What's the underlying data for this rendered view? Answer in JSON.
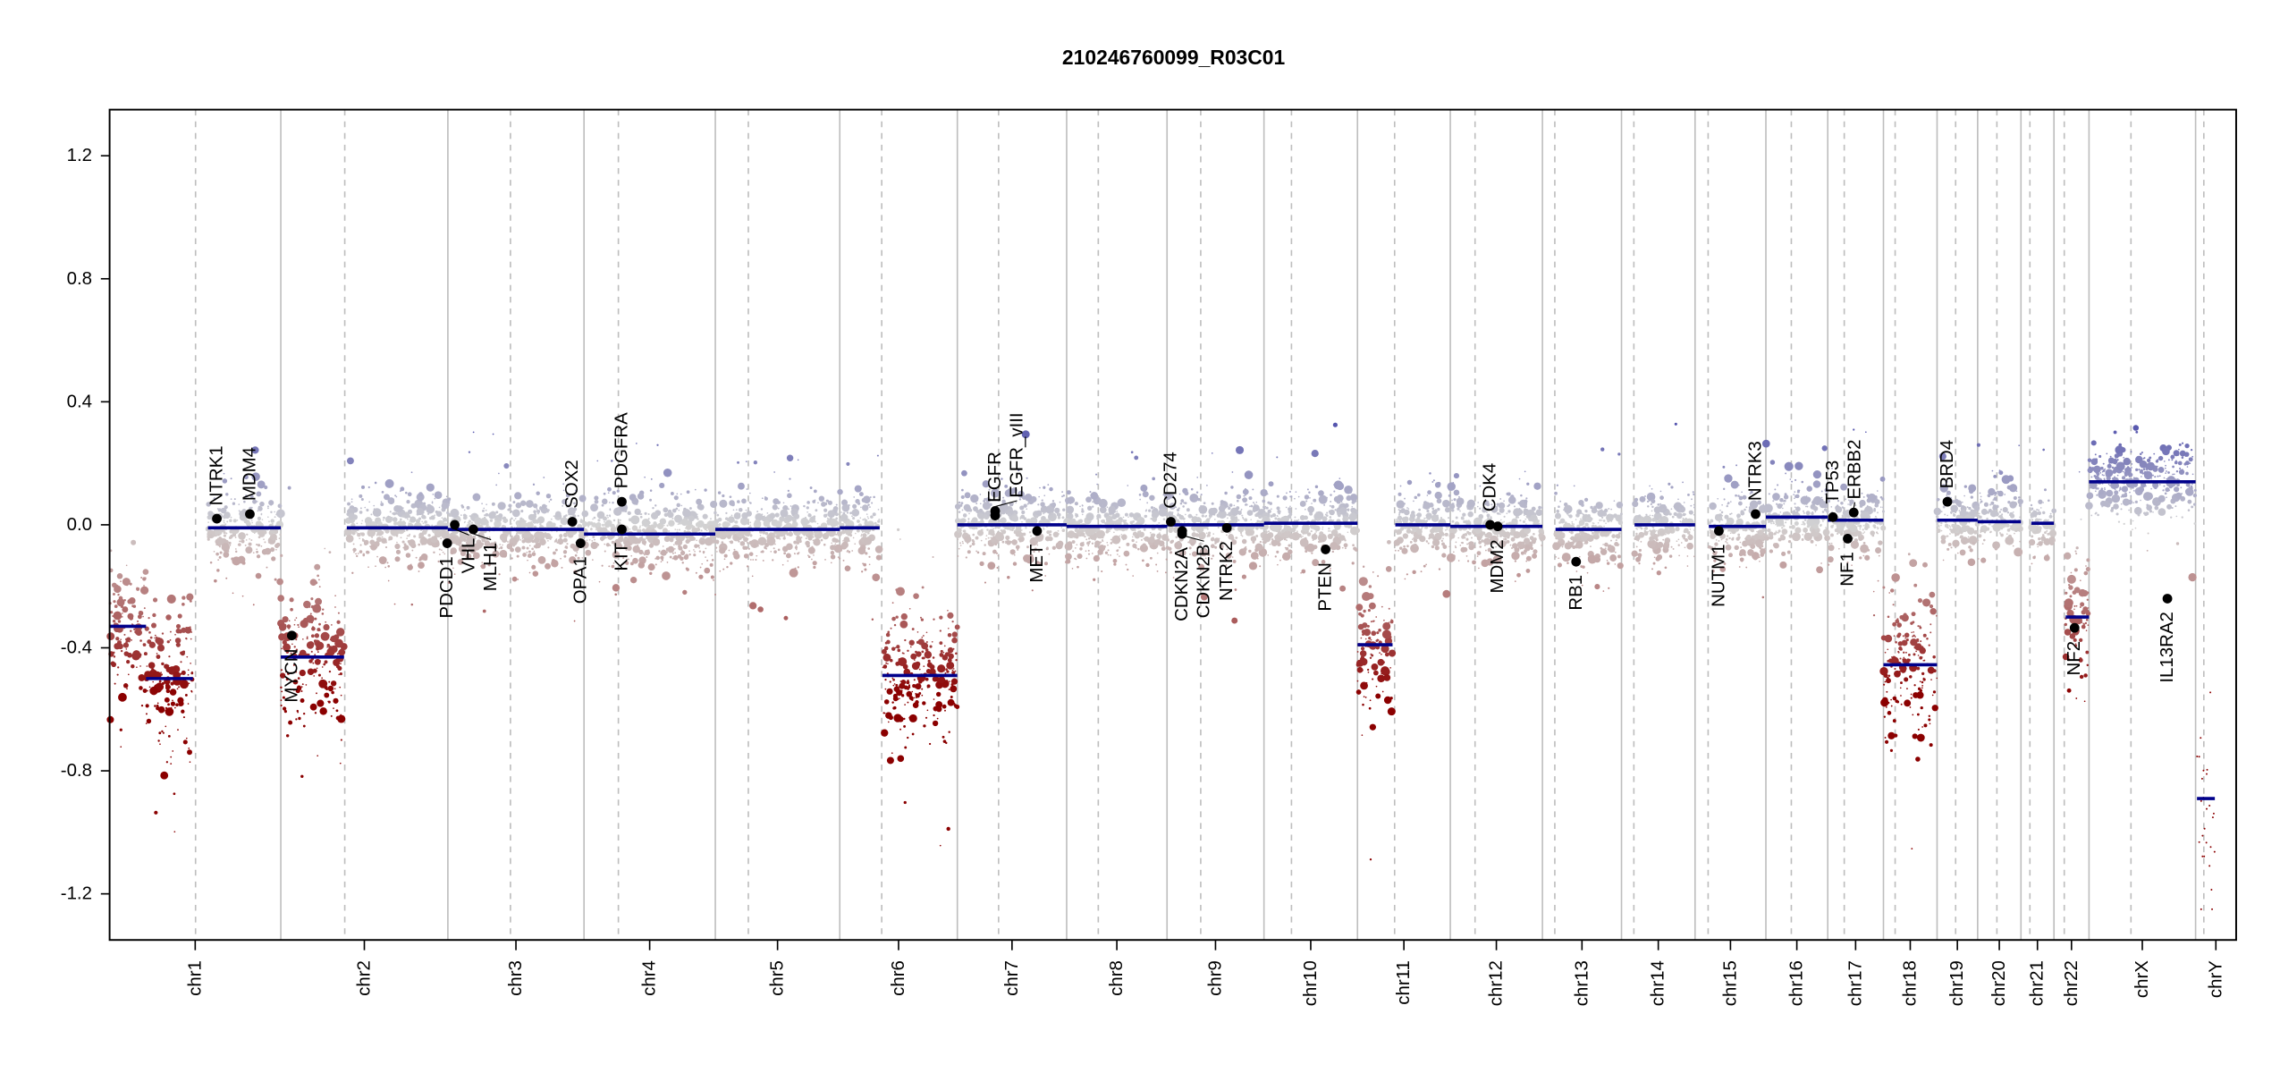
{
  "chart_data": {
    "type": "scatter",
    "title": "210246760099_R03C01",
    "xlabel": "",
    "ylabel": "",
    "ylim": [
      -1.35,
      1.35
    ],
    "yticks": [
      -1.2,
      -0.8,
      -0.4,
      0.0,
      0.4,
      0.8,
      1.2
    ],
    "ytick_labels": [
      "-1.2",
      "-0.8",
      "-0.4",
      "0.0",
      "0.4",
      "0.8",
      "1.2"
    ],
    "grid": false,
    "colors": {
      "segment": "#00008b",
      "loss": "#8b0000",
      "neutral": "#d3d3d3",
      "gain": "#4b4bab",
      "gene": "#000000",
      "chrom_line": "#bebebe",
      "centromere_line": "#bebebe"
    },
    "chromosomes": [
      {
        "name": "chr1",
        "length_mb": 249,
        "centromere_mb": 125
      },
      {
        "name": "chr2",
        "length_mb": 243,
        "centromere_mb": 93
      },
      {
        "name": "chr3",
        "length_mb": 198,
        "centromere_mb": 91
      },
      {
        "name": "chr4",
        "length_mb": 191,
        "centromere_mb": 50
      },
      {
        "name": "chr5",
        "length_mb": 181,
        "centromere_mb": 48
      },
      {
        "name": "chr6",
        "length_mb": 171,
        "centromere_mb": 61
      },
      {
        "name": "chr7",
        "length_mb": 159,
        "centromere_mb": 60
      },
      {
        "name": "chr8",
        "length_mb": 146,
        "centromere_mb": 46
      },
      {
        "name": "chr9",
        "length_mb": 141,
        "centromere_mb": 49
      },
      {
        "name": "chr10",
        "length_mb": 136,
        "centromere_mb": 40
      },
      {
        "name": "chr11",
        "length_mb": 135,
        "centromere_mb": 54
      },
      {
        "name": "chr12",
        "length_mb": 134,
        "centromere_mb": 36
      },
      {
        "name": "chr13",
        "length_mb": 115,
        "centromere_mb": 18
      },
      {
        "name": "chr14",
        "length_mb": 107,
        "centromere_mb": 18
      },
      {
        "name": "chr15",
        "length_mb": 103,
        "centromere_mb": 19
      },
      {
        "name": "chr16",
        "length_mb": 90,
        "centromere_mb": 37
      },
      {
        "name": "chr17",
        "length_mb": 81,
        "centromere_mb": 24
      },
      {
        "name": "chr18",
        "length_mb": 78,
        "centromere_mb": 17
      },
      {
        "name": "chr19",
        "length_mb": 59,
        "centromere_mb": 27
      },
      {
        "name": "chr20",
        "length_mb": 63,
        "centromere_mb": 28
      },
      {
        "name": "chr21",
        "length_mb": 48,
        "centromere_mb": 13
      },
      {
        "name": "chr22",
        "length_mb": 51,
        "centromere_mb": 15
      },
      {
        "name": "chrX",
        "length_mb": 155,
        "centromere_mb": 61
      },
      {
        "name": "chrY",
        "length_mb": 59,
        "centromere_mb": 12
      }
    ],
    "segments": [
      {
        "chr": "chr1",
        "start": 0,
        "end": 53,
        "value": -0.33
      },
      {
        "chr": "chr1",
        "start": 53,
        "end": 121,
        "value": -0.5
      },
      {
        "chr": "chr1",
        "start": 143,
        "end": 249,
        "value": -0.01
      },
      {
        "chr": "chr2",
        "start": 0,
        "end": 92,
        "value": -0.43
      },
      {
        "chr": "chr2",
        "start": 96,
        "end": 243,
        "value": -0.01
      },
      {
        "chr": "chr3",
        "start": 0,
        "end": 198,
        "value": -0.015
      },
      {
        "chr": "chr4",
        "start": 0,
        "end": 191,
        "value": -0.03
      },
      {
        "chr": "chr5",
        "start": 0,
        "end": 181,
        "value": -0.015
      },
      {
        "chr": "chr6",
        "start": 0,
        "end": 58,
        "value": -0.01
      },
      {
        "chr": "chr6",
        "start": 62,
        "end": 171,
        "value": -0.49
      },
      {
        "chr": "chr7",
        "start": 0,
        "end": 159,
        "value": 0.0
      },
      {
        "chr": "chr8",
        "start": 0,
        "end": 146,
        "value": -0.005
      },
      {
        "chr": "chr9",
        "start": 0,
        "end": 141,
        "value": 0.0
      },
      {
        "chr": "chr10",
        "start": 0,
        "end": 136,
        "value": 0.005
      },
      {
        "chr": "chr11",
        "start": 0,
        "end": 51,
        "value": -0.39
      },
      {
        "chr": "chr11",
        "start": 55,
        "end": 135,
        "value": 0.0
      },
      {
        "chr": "chr12",
        "start": 0,
        "end": 134,
        "value": -0.005
      },
      {
        "chr": "chr13",
        "start": 19,
        "end": 115,
        "value": -0.015
      },
      {
        "chr": "chr14",
        "start": 19,
        "end": 107,
        "value": 0.0
      },
      {
        "chr": "chr15",
        "start": 20,
        "end": 103,
        "value": -0.005
      },
      {
        "chr": "chr16",
        "start": 0,
        "end": 90,
        "value": 0.025
      },
      {
        "chr": "chr17",
        "start": 0,
        "end": 81,
        "value": 0.015
      },
      {
        "chr": "chr18",
        "start": 0,
        "end": 78,
        "value": -0.455
      },
      {
        "chr": "chr19",
        "start": 0,
        "end": 59,
        "value": 0.015
      },
      {
        "chr": "chr20",
        "start": 0,
        "end": 63,
        "value": 0.01
      },
      {
        "chr": "chr21",
        "start": 15,
        "end": 48,
        "value": 0.005
      },
      {
        "chr": "chr22",
        "start": 17,
        "end": 51,
        "value": -0.3
      },
      {
        "chr": "chrX",
        "start": 0,
        "end": 155,
        "value": 0.14
      },
      {
        "chr": "chrY",
        "start": 2,
        "end": 28,
        "value": -0.89
      }
    ],
    "genes": [
      {
        "label": "NTRK1",
        "chr": "chr1",
        "pos": 156,
        "value": 0.02,
        "side": "above"
      },
      {
        "label": "MDM4",
        "chr": "chr1",
        "pos": 204,
        "value": 0.035,
        "side": "above"
      },
      {
        "label": "MYCN",
        "chr": "chr2",
        "pos": 16,
        "value": -0.36,
        "side": "below"
      },
      {
        "label": "PDCD1",
        "chr": "chr2",
        "pos": 242,
        "value": -0.06,
        "side": "below"
      },
      {
        "label": "VHL",
        "chr": "chr3",
        "pos": 10,
        "value": 0.0,
        "side": "below"
      },
      {
        "label": "MLH1",
        "chr": "chr3",
        "pos": 37,
        "value": -0.015,
        "side": "below"
      },
      {
        "label": "SOX2",
        "chr": "chr3",
        "pos": 181,
        "value": 0.01,
        "side": "above"
      },
      {
        "label": "OPA1",
        "chr": "chr3",
        "pos": 193,
        "value": -0.06,
        "side": "below"
      },
      {
        "label": "KIT",
        "chr": "chr4",
        "pos": 55,
        "value": -0.015,
        "side": "below"
      },
      {
        "label": "PDGFRA",
        "chr": "chr4",
        "pos": 55,
        "value": 0.075,
        "side": "above"
      },
      {
        "label": "EGFR",
        "chr": "chr7",
        "pos": 55,
        "value": 0.03,
        "side": "above"
      },
      {
        "label": "EGFR_vIII",
        "chr": "chr7",
        "pos": 55,
        "value": 0.045,
        "side": "above"
      },
      {
        "label": "MET",
        "chr": "chr7",
        "pos": 116,
        "value": -0.02,
        "side": "below"
      },
      {
        "label": "CD274",
        "chr": "chr9",
        "pos": 5.5,
        "value": 0.01,
        "side": "above"
      },
      {
        "label": "CDKN2A",
        "chr": "chr9",
        "pos": 21.9,
        "value": -0.03,
        "side": "below"
      },
      {
        "label": "CDKN2B",
        "chr": "chr9",
        "pos": 22.0,
        "value": -0.02,
        "side": "below"
      },
      {
        "label": "NTRK2",
        "chr": "chr9",
        "pos": 87,
        "value": -0.01,
        "side": "below"
      },
      {
        "label": "PTEN",
        "chr": "chr10",
        "pos": 89.6,
        "value": -0.08,
        "side": "below"
      },
      {
        "label": "CDK4",
        "chr": "chr12",
        "pos": 58,
        "value": 0.0,
        "side": "above"
      },
      {
        "label": "MDM2",
        "chr": "chr12",
        "pos": 69,
        "value": -0.005,
        "side": "below"
      },
      {
        "label": "RB1",
        "chr": "chr13",
        "pos": 49,
        "value": -0.12,
        "side": "below"
      },
      {
        "label": "NUTM1",
        "chr": "chr15",
        "pos": 34.6,
        "value": -0.02,
        "side": "below"
      },
      {
        "label": "NTRK3",
        "chr": "chr15",
        "pos": 88,
        "value": 0.035,
        "side": "above"
      },
      {
        "label": "TP53",
        "chr": "chr17",
        "pos": 7.5,
        "value": 0.025,
        "side": "above"
      },
      {
        "label": "NF1",
        "chr": "chr17",
        "pos": 29,
        "value": -0.045,
        "side": "below"
      },
      {
        "label": "ERBB2",
        "chr": "chr17",
        "pos": 37.8,
        "value": 0.04,
        "side": "above"
      },
      {
        "label": "BRD4",
        "chr": "chr19",
        "pos": 15,
        "value": 0.075,
        "side": "above"
      },
      {
        "label": "NF2",
        "chr": "chr22",
        "pos": 30,
        "value": -0.335,
        "side": "below"
      },
      {
        "label": "IL13RA2",
        "chr": "chrX",
        "pos": 114,
        "value": -0.24,
        "side": "below"
      }
    ]
  }
}
